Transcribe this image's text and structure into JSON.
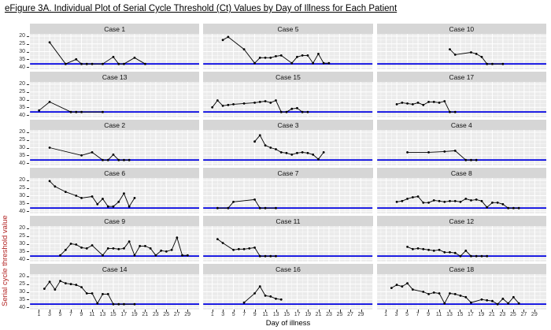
{
  "page": {
    "title": "eFigure 3A. Individual Plot of Serial Cycle Threshold (Ct) Values by Day of Illness for Each Patient"
  },
  "chart_data": {
    "type": "line",
    "title": "eFigure 3A. Individual Plot of Serial Cycle Threshold (Ct) Values by Day of Illness for Each Patient",
    "xlabel": "Day of illness",
    "ylabel": "Serial cycle threshold value",
    "facet_layout": {
      "rows": 6,
      "cols": 3,
      "order": "row-major"
    },
    "x_ticks": [
      1,
      3,
      5,
      7,
      9,
      11,
      13,
      15,
      17,
      19,
      21,
      23,
      25,
      27,
      29
    ],
    "y_ticks": [
      20,
      25,
      30,
      35,
      40
    ],
    "y_minor_ticks": [
      22.5,
      27.5,
      32.5,
      37.5
    ],
    "y_axis_reversed": true,
    "xlim": [
      -0.7,
      31.2
    ],
    "ylim_top_to_bottom": [
      18.5,
      41.5
    ],
    "reference_line_y": 38,
    "grid": "major and minor white gridlines on gray panel",
    "legend": "none",
    "colors": {
      "panel_bg": "#ebebeb",
      "strip_bg": "#d6d6d6",
      "gridline": "#ffffff",
      "series": "#000000",
      "reference_line": "#0000e0",
      "axis_text": "#333333",
      "y_title": "#b22222",
      "x_title": "#000000",
      "title": "#000000"
    },
    "facets": [
      {
        "case": "Case 1",
        "points": [
          [
            3,
            24
          ],
          [
            6,
            38
          ],
          [
            8,
            35
          ],
          [
            9,
            38
          ],
          [
            10,
            38
          ],
          [
            11,
            38
          ],
          [
            13,
            38
          ],
          [
            15,
            33.5
          ],
          [
            16,
            38
          ],
          [
            17,
            38
          ],
          [
            19,
            34
          ],
          [
            21,
            38
          ]
        ]
      },
      {
        "case": "Case 5",
        "points": [
          [
            3,
            22.5
          ],
          [
            4,
            20.5
          ],
          [
            7,
            28.5
          ],
          [
            9,
            37.5
          ],
          [
            10,
            34
          ],
          [
            11,
            34
          ],
          [
            12,
            34
          ],
          [
            13,
            33
          ],
          [
            14,
            32.5
          ],
          [
            16,
            37.5
          ],
          [
            17,
            33.5
          ],
          [
            18,
            32.5
          ],
          [
            19,
            32.5
          ],
          [
            20,
            37.5
          ],
          [
            21,
            31.5
          ],
          [
            22,
            37.5
          ],
          [
            23,
            37.5
          ]
        ]
      },
      {
        "case": "Case 10",
        "points": [
          [
            13,
            28.5
          ],
          [
            14,
            32
          ],
          [
            17,
            30.5
          ],
          [
            18,
            31.5
          ],
          [
            19,
            33.5
          ],
          [
            20,
            38
          ],
          [
            21,
            38
          ],
          [
            23,
            38
          ]
        ]
      },
      {
        "case": "Case 13",
        "points": [
          [
            1,
            37
          ],
          [
            3,
            31.5
          ],
          [
            7,
            38
          ],
          [
            8,
            38
          ],
          [
            9,
            38
          ],
          [
            13,
            38
          ]
        ]
      },
      {
        "case": "Case 15",
        "points": [
          [
            1,
            35
          ],
          [
            2,
            30.5
          ],
          [
            3,
            34
          ],
          [
            4,
            33.5
          ],
          [
            5,
            33
          ],
          [
            7,
            32.5
          ],
          [
            9,
            32
          ],
          [
            10,
            31.5
          ],
          [
            11,
            31
          ],
          [
            12,
            32
          ],
          [
            13,
            30.5
          ],
          [
            14,
            38
          ],
          [
            15,
            38
          ],
          [
            16,
            36
          ],
          [
            17,
            35.5
          ],
          [
            18,
            38
          ],
          [
            19,
            38
          ]
        ]
      },
      {
        "case": "Case 17",
        "points": [
          [
            3,
            33
          ],
          [
            4,
            32
          ],
          [
            5,
            32.5
          ],
          [
            6,
            33
          ],
          [
            7,
            32
          ],
          [
            8,
            33.5
          ],
          [
            9,
            31.5
          ],
          [
            10,
            31.5
          ],
          [
            11,
            32
          ],
          [
            12,
            31
          ],
          [
            13,
            38
          ],
          [
            14,
            38
          ]
        ]
      },
      {
        "case": "Case 2",
        "points": [
          [
            3,
            30
          ],
          [
            9,
            35
          ],
          [
            11,
            33
          ],
          [
            13,
            38
          ],
          [
            14,
            38
          ],
          [
            15,
            34.5
          ],
          [
            16,
            38
          ],
          [
            17,
            38
          ],
          [
            18,
            38
          ]
        ]
      },
      {
        "case": "Case 3",
        "points": [
          [
            9,
            26
          ],
          [
            10,
            22
          ],
          [
            11,
            28.5
          ],
          [
            12,
            30
          ],
          [
            13,
            31
          ],
          [
            14,
            33
          ],
          [
            15,
            33.5
          ],
          [
            16,
            34.5
          ],
          [
            17,
            33.5
          ],
          [
            18,
            33
          ],
          [
            19,
            33.5
          ],
          [
            20,
            34.5
          ],
          [
            21,
            37.5
          ],
          [
            22,
            33
          ]
        ]
      },
      {
        "case": "Case 4",
        "points": [
          [
            5,
            33
          ],
          [
            9,
            33
          ],
          [
            12,
            32.5
          ],
          [
            14,
            32
          ],
          [
            16,
            38
          ],
          [
            17,
            38
          ],
          [
            18,
            38
          ]
        ]
      },
      {
        "case": "Case 6",
        "points": [
          [
            3,
            20.5
          ],
          [
            4,
            24
          ],
          [
            6,
            27.5
          ],
          [
            8,
            30
          ],
          [
            9,
            31.5
          ],
          [
            11,
            30.5
          ],
          [
            12,
            35.5
          ],
          [
            13,
            32
          ],
          [
            14,
            37
          ],
          [
            15,
            37
          ],
          [
            16,
            34
          ],
          [
            17,
            28.5
          ],
          [
            18,
            37
          ],
          [
            19,
            31.5
          ]
        ]
      },
      {
        "case": "Case 7",
        "points": [
          [
            2,
            38
          ],
          [
            4,
            38
          ],
          [
            5,
            34
          ],
          [
            9,
            32.5
          ],
          [
            10,
            38
          ],
          [
            11,
            38
          ],
          [
            13,
            38
          ]
        ]
      },
      {
        "case": "Case 8",
        "points": [
          [
            3,
            34
          ],
          [
            4,
            33.5
          ],
          [
            5,
            32
          ],
          [
            6,
            31
          ],
          [
            7,
            30.5
          ],
          [
            8,
            34.5
          ],
          [
            9,
            34.5
          ],
          [
            10,
            33
          ],
          [
            11,
            33.5
          ],
          [
            12,
            34
          ],
          [
            13,
            33.5
          ],
          [
            14,
            33.5
          ],
          [
            15,
            34
          ],
          [
            16,
            32
          ],
          [
            17,
            33
          ],
          [
            18,
            32.5
          ],
          [
            19,
            33.5
          ],
          [
            20,
            37.5
          ],
          [
            21,
            34.5
          ],
          [
            22,
            34.5
          ],
          [
            23,
            35.5
          ],
          [
            24,
            38
          ],
          [
            25,
            38
          ],
          [
            26,
            38
          ]
        ]
      },
      {
        "case": "Case 9",
        "points": [
          [
            5,
            37.5
          ],
          [
            6,
            34
          ],
          [
            7,
            30
          ],
          [
            8,
            30.5
          ],
          [
            9,
            32.5
          ],
          [
            10,
            33
          ],
          [
            11,
            31
          ],
          [
            13,
            37.5
          ],
          [
            14,
            33
          ],
          [
            15,
            33
          ],
          [
            16,
            33.5
          ],
          [
            17,
            33
          ],
          [
            18,
            28.5
          ],
          [
            19,
            37.5
          ],
          [
            20,
            31.5
          ],
          [
            21,
            31.5
          ],
          [
            22,
            33
          ],
          [
            23,
            37.5
          ],
          [
            24,
            34.5
          ],
          [
            25,
            35
          ],
          [
            26,
            34
          ],
          [
            27,
            26
          ],
          [
            28,
            37.5
          ],
          [
            29,
            37.5
          ]
        ]
      },
      {
        "case": "Case 11",
        "points": [
          [
            2,
            27
          ],
          [
            3,
            29.5
          ],
          [
            5,
            34
          ],
          [
            6,
            33.5
          ],
          [
            7,
            33.5
          ],
          [
            8,
            33
          ],
          [
            9,
            32.5
          ],
          [
            10,
            38
          ],
          [
            11,
            38
          ],
          [
            12,
            38
          ],
          [
            13,
            38
          ]
        ]
      },
      {
        "case": "Case 12",
        "points": [
          [
            5,
            32
          ],
          [
            6,
            33.5
          ],
          [
            7,
            33
          ],
          [
            8,
            33.5
          ],
          [
            9,
            34
          ],
          [
            10,
            34.5
          ],
          [
            11,
            34
          ],
          [
            12,
            35.5
          ],
          [
            13,
            35.5
          ],
          [
            14,
            36
          ],
          [
            15,
            38
          ],
          [
            16,
            34.5
          ],
          [
            17,
            38
          ],
          [
            18,
            38
          ],
          [
            19,
            38
          ],
          [
            20,
            38
          ]
        ]
      },
      {
        "case": "Case 14",
        "points": [
          [
            2,
            28
          ],
          [
            3,
            23.5
          ],
          [
            4,
            28.5
          ],
          [
            5,
            23
          ],
          [
            6,
            24.5
          ],
          [
            7,
            25
          ],
          [
            8,
            25.5
          ],
          [
            9,
            27
          ],
          [
            10,
            31
          ],
          [
            11,
            31
          ],
          [
            12,
            37.5
          ],
          [
            13,
            31.5
          ],
          [
            14,
            31.5
          ],
          [
            15,
            38
          ],
          [
            16,
            38
          ],
          [
            17,
            38
          ],
          [
            19,
            38
          ]
        ]
      },
      {
        "case": "Case 16",
        "points": [
          [
            7,
            37
          ],
          [
            9,
            31
          ],
          [
            10,
            26.5
          ],
          [
            11,
            32.5
          ],
          [
            12,
            33
          ],
          [
            13,
            34.5
          ],
          [
            14,
            35
          ]
        ]
      },
      {
        "case": "Case 18",
        "points": [
          [
            2,
            27.5
          ],
          [
            3,
            25.5
          ],
          [
            4,
            26.5
          ],
          [
            5,
            24.5
          ],
          [
            6,
            28.5
          ],
          [
            8,
            30
          ],
          [
            9,
            31.5
          ],
          [
            10,
            30.5
          ],
          [
            11,
            31
          ],
          [
            12,
            37.5
          ],
          [
            13,
            31
          ],
          [
            14,
            31.5
          ],
          [
            15,
            32.5
          ],
          [
            16,
            33.5
          ],
          [
            17,
            37
          ],
          [
            19,
            35
          ],
          [
            20,
            35.5
          ],
          [
            21,
            36
          ],
          [
            22,
            38
          ],
          [
            23,
            34.5
          ],
          [
            24,
            37.5
          ],
          [
            25,
            33.5
          ],
          [
            26,
            37.5
          ]
        ]
      }
    ]
  }
}
